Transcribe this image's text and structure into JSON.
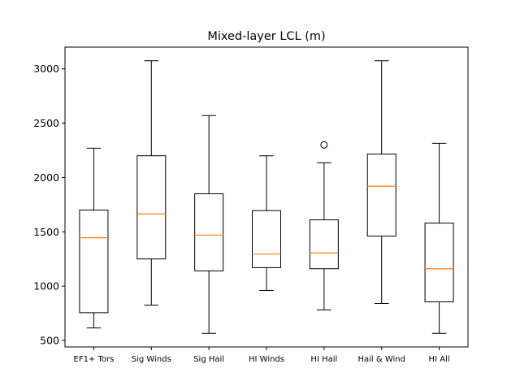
{
  "chart_data": {
    "type": "box",
    "title": "Mixed-layer LCL (m)",
    "xlabel": "",
    "ylabel": "",
    "ylim": [
      440,
      3200
    ],
    "yticks": [
      500,
      1000,
      1500,
      2000,
      2500,
      3000
    ],
    "grid": false,
    "categories": [
      "EF1+ Tors",
      "Sig Winds",
      "Sig Hail",
      "HI Winds",
      "HI Hail",
      "Hail & Wind",
      "HI All"
    ],
    "boxes": [
      {
        "category": "EF1+ Tors",
        "whisker_low": 615,
        "q1": 755,
        "median": 1445,
        "q3": 1700,
        "whisker_high": 2270,
        "outliers": []
      },
      {
        "category": "Sig Winds",
        "whisker_low": 825,
        "q1": 1250,
        "median": 1665,
        "q3": 2200,
        "whisker_high": 3075,
        "outliers": []
      },
      {
        "category": "Sig Hail",
        "whisker_low": 565,
        "q1": 1140,
        "median": 1470,
        "q3": 1850,
        "whisker_high": 2570,
        "outliers": []
      },
      {
        "category": "HI Winds",
        "whisker_low": 960,
        "q1": 1170,
        "median": 1295,
        "q3": 1695,
        "whisker_high": 2200,
        "outliers": []
      },
      {
        "category": "HI Hail",
        "whisker_low": 780,
        "q1": 1160,
        "median": 1305,
        "q3": 1610,
        "whisker_high": 2135,
        "outliers": [
          2300
        ]
      },
      {
        "category": "Hail & Wind",
        "whisker_low": 840,
        "q1": 1460,
        "median": 1920,
        "q3": 2215,
        "whisker_high": 3075,
        "outliers": []
      },
      {
        "category": "HI All",
        "whisker_low": 565,
        "q1": 855,
        "median": 1160,
        "q3": 1580,
        "whisker_high": 2315,
        "outliers": []
      }
    ],
    "colors": {
      "box": "#000000",
      "median": "#ff7f0e",
      "background": "#ffffff"
    }
  }
}
